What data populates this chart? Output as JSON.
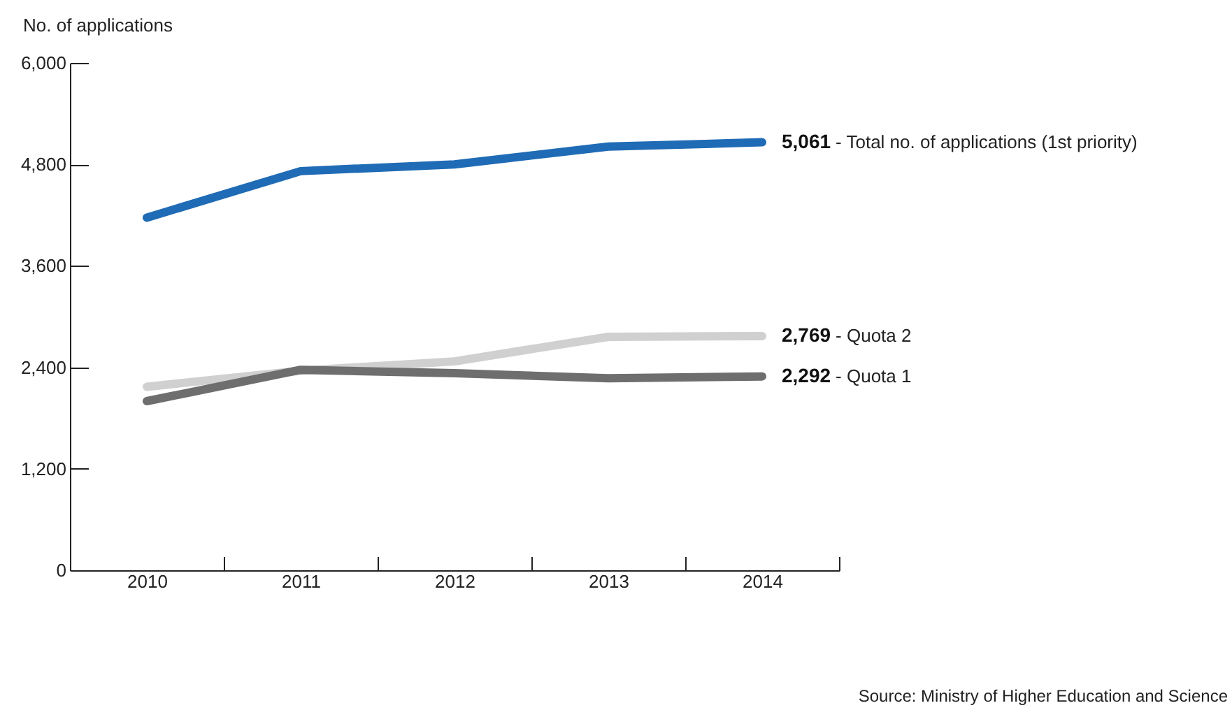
{
  "chart_data": {
    "type": "line",
    "ylabel": "No. of applications",
    "categories": [
      "2010",
      "2011",
      "2012",
      "2013",
      "2014"
    ],
    "series": [
      {
        "name": "- Total no. of applications (1st priority)",
        "color": "#1f6bb5",
        "values": [
          4170,
          4720,
          4800,
          5010,
          5061
        ],
        "value_labels": [
          null,
          null,
          null,
          null,
          "5,061"
        ]
      },
      {
        "name": "- Quota 2",
        "color": "#d0d0d0",
        "values": [
          2170,
          2360,
          2470,
          2760,
          2769
        ],
        "value_labels": [
          null,
          null,
          null,
          null,
          "2,769"
        ]
      },
      {
        "name": "- Quota 1",
        "color": "#6e6e6e",
        "values": [
          2000,
          2370,
          2330,
          2270,
          2292
        ],
        "value_labels": [
          null,
          null,
          null,
          null,
          "2,292"
        ]
      }
    ],
    "ylim": [
      0,
      6000
    ],
    "yticks": [
      0,
      {
        "value": 1200,
        "label": "1,200"
      },
      {
        "value": 2400,
        "label": "2,400"
      },
      {
        "value": 3600,
        "label": "3,600"
      },
      {
        "value": 4800,
        "label": "4,800"
      },
      {
        "value": 6000,
        "label": "6,000"
      }
    ],
    "grid": false,
    "legend": false,
    "marker": "none",
    "line_style": "solid",
    "annotations": [
      "Source: Ministry of Higher Education and Science"
    ]
  }
}
